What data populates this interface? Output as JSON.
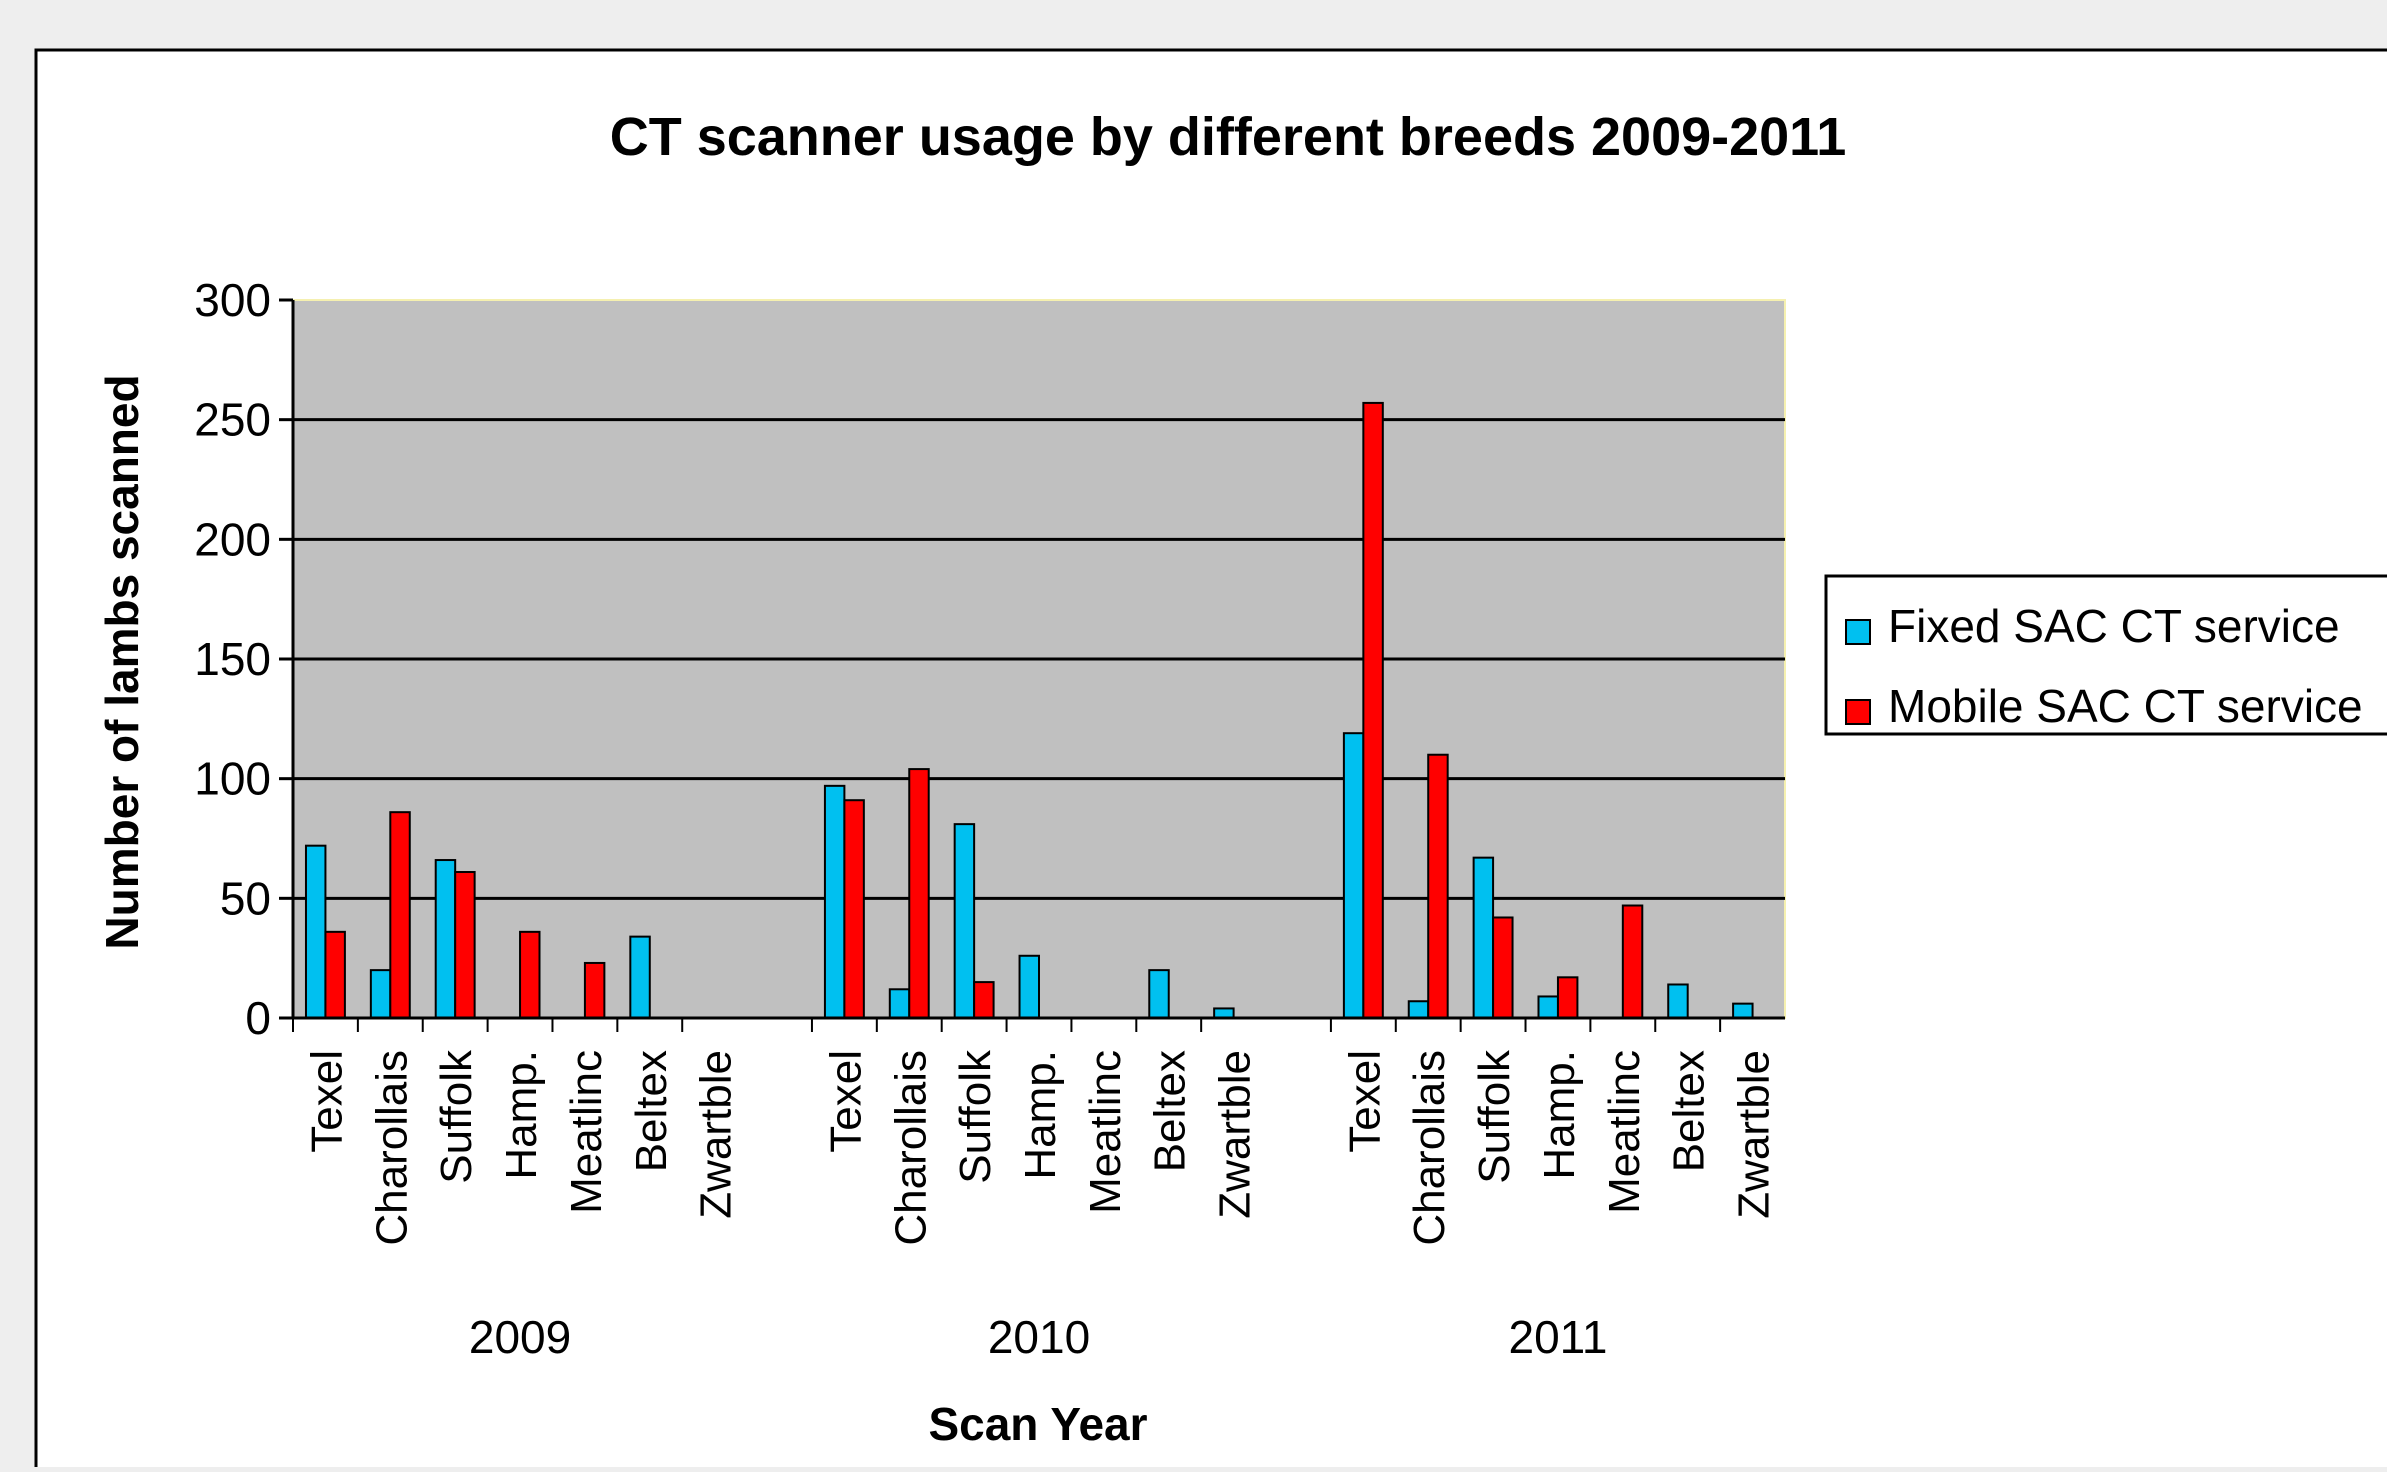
{
  "chart_data": {
    "type": "bar",
    "title": "CT scanner usage by different breeds 2009-2011",
    "xlabel": "Scan Year",
    "ylabel": "Number of lambs scanned",
    "ylim": [
      0,
      300
    ],
    "yticks": [
      "0",
      "50",
      "100",
      "150",
      "200",
      "250",
      "300"
    ],
    "grid": true,
    "legend_position": "right",
    "groups": [
      {
        "year": "2009",
        "breeds": [
          "Texel",
          "Charollais",
          "Suffolk",
          "Hamp.",
          "Meatlinc",
          "Beltex",
          "Zwartble"
        ]
      },
      {
        "year": "2010",
        "breeds": [
          "Texel",
          "Charollais",
          "Suffolk",
          "Hamp.",
          "Meatlinc",
          "Beltex",
          "Zwartble"
        ]
      },
      {
        "year": "2011",
        "breeds": [
          "Texel",
          "Charollais",
          "Suffolk",
          "Hamp.",
          "Meatlinc",
          "Beltex",
          "Zwartble"
        ]
      }
    ],
    "series": [
      {
        "name": "Fixed SAC CT service",
        "color": "#00c0f0",
        "values": [
          72,
          20,
          66,
          0,
          0,
          34,
          0,
          97,
          12,
          81,
          26,
          0,
          20,
          4,
          119,
          7,
          67,
          9,
          0,
          14,
          6
        ]
      },
      {
        "name": "Mobile SAC CT service",
        "color": "#ff0000",
        "values": [
          36,
          86,
          61,
          36,
          23,
          0,
          0,
          91,
          104,
          15,
          0,
          0,
          0,
          0,
          257,
          110,
          42,
          17,
          47,
          0,
          0
        ]
      }
    ],
    "plot_background": "#c0c0c0",
    "gridline_color": "#000000"
  }
}
